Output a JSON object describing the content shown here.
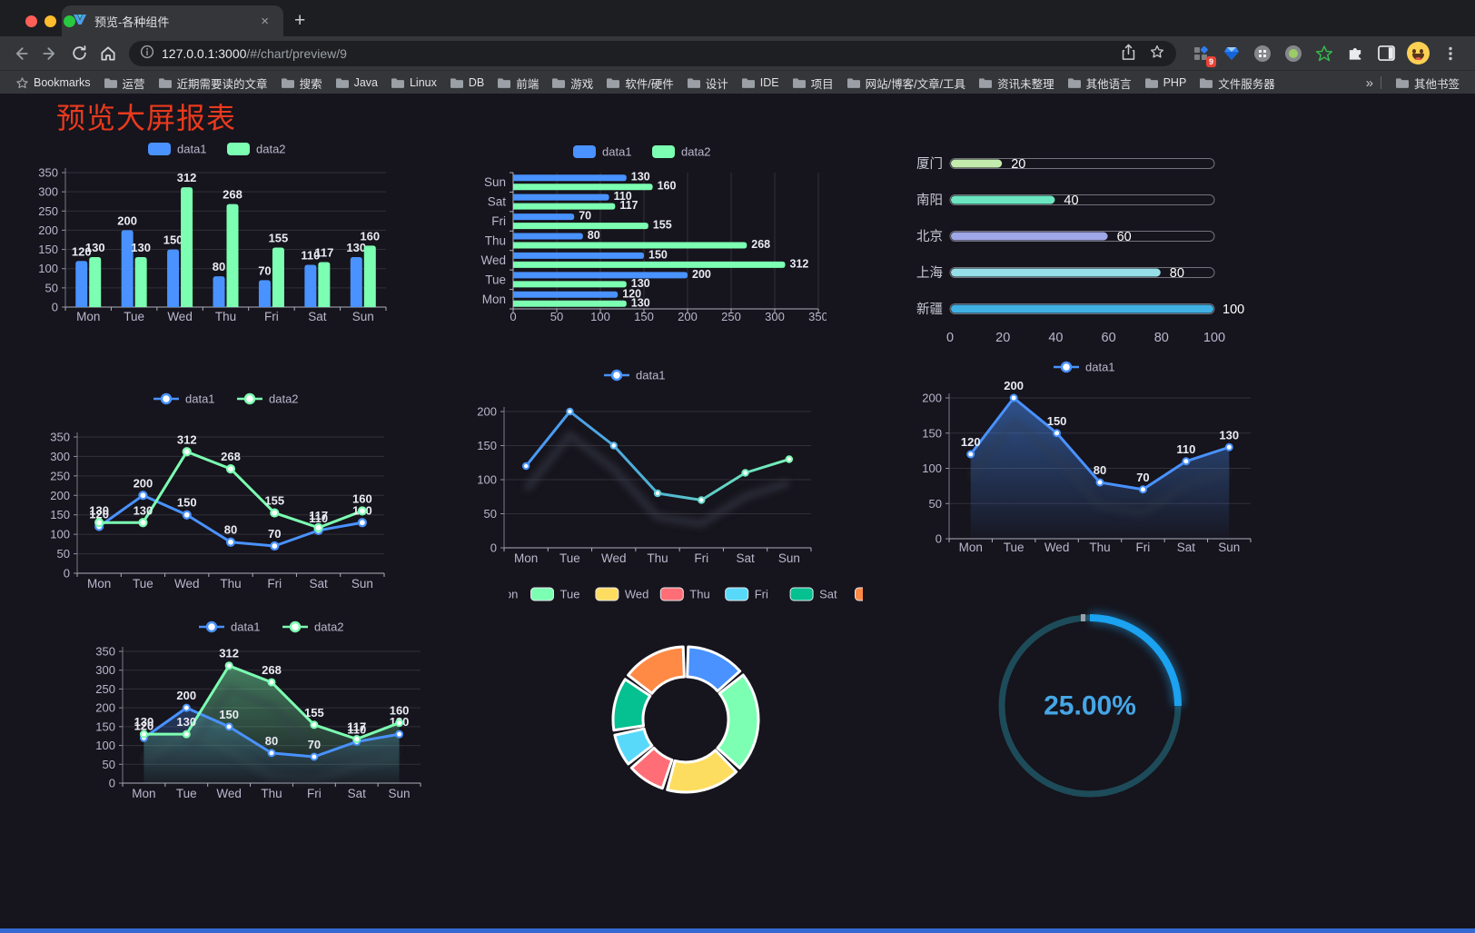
{
  "browser": {
    "traffic_lights": [
      "#ff5f57",
      "#febc2e",
      "#28c840"
    ],
    "tab": {
      "title": "预览-各种组件",
      "close": "×",
      "new_tab": "+"
    },
    "url": {
      "host": "127.0.0.1:3000",
      "path": "/#/chart/preview/9"
    },
    "bookmarks_bar": {
      "bookmarks_label": "Bookmarks",
      "folders": [
        "运营",
        "近期需要读的文章",
        "搜索",
        "Java",
        "Linux",
        "DB",
        "前端",
        "游戏",
        "软件/硬件",
        "设计",
        "IDE",
        "项目",
        "网站/博客/文章/工具",
        "资讯未整理",
        "其他语言",
        "PHP",
        "文件服务器"
      ],
      "overflow": "»",
      "other_bookmarks": "其他书签"
    },
    "extension_badge": "9"
  },
  "page": {
    "title": "预览大屏报表",
    "title_color": "#e83a1e",
    "background": "#16141c",
    "bottom_bar_color": "#3569d3"
  },
  "chart_data": [
    {
      "id": "c1",
      "type": "bar",
      "variant": "grouped-vertical",
      "categories": [
        "Mon",
        "Tue",
        "Wed",
        "Thu",
        "Fri",
        "Sat",
        "Sun"
      ],
      "series": [
        {
          "name": "data1",
          "color": "#4992ff",
          "values": [
            120,
            200,
            150,
            80,
            70,
            110,
            130
          ]
        },
        {
          "name": "data2",
          "color": "#7cffb2",
          "values": [
            130,
            130,
            312,
            268,
            155,
            117,
            160
          ]
        }
      ],
      "ylim": [
        0,
        350
      ],
      "ytick": 50,
      "legend_position": "top"
    },
    {
      "id": "c2",
      "type": "bar",
      "variant": "grouped-horizontal",
      "categories": [
        "Mon",
        "Tue",
        "Wed",
        "Thu",
        "Fri",
        "Sat",
        "Sun"
      ],
      "row_order_top_to_bottom": [
        "Sun",
        "Sat",
        "Fri",
        "Thu",
        "Wed",
        "Tue",
        "Mon"
      ],
      "series": [
        {
          "name": "data1",
          "color": "#4992ff",
          "values": [
            120,
            200,
            150,
            80,
            70,
            110,
            130
          ]
        },
        {
          "name": "data2",
          "color": "#7cffb2",
          "values": [
            130,
            130,
            312,
            268,
            155,
            117,
            160
          ]
        }
      ],
      "xlim": [
        0,
        350
      ],
      "xtick": 50,
      "legend_position": "top"
    },
    {
      "id": "c3",
      "type": "bar",
      "variant": "progress",
      "categories": [
        "厦门",
        "南阳",
        "北京",
        "上海",
        "新疆"
      ],
      "values": [
        20,
        40,
        60,
        80,
        100
      ],
      "colors": [
        "#c4ebad",
        "#6be6c1",
        "#a0a7e6",
        "#96dee8",
        "#3fb1e3"
      ],
      "xlim": [
        0,
        100
      ],
      "xticks": [
        0,
        20,
        40,
        60,
        80,
        100
      ]
    },
    {
      "id": "c4",
      "type": "line",
      "variant": "multi",
      "categories": [
        "Mon",
        "Tue",
        "Wed",
        "Thu",
        "Fri",
        "Sat",
        "Sun"
      ],
      "series": [
        {
          "name": "data1",
          "color": "#4992ff",
          "values": [
            120,
            200,
            150,
            80,
            70,
            110,
            130
          ]
        },
        {
          "name": "data2",
          "color": "#7cffb2",
          "values": [
            130,
            130,
            312,
            268,
            155,
            117,
            160
          ]
        }
      ],
      "ylim": [
        0,
        350
      ],
      "ytick": 50,
      "labels": true
    },
    {
      "id": "c5",
      "type": "line",
      "variant": "gradient-single",
      "categories": [
        "Mon",
        "Tue",
        "Wed",
        "Thu",
        "Fri",
        "Sat",
        "Sun"
      ],
      "series": [
        {
          "name": "data1",
          "color": "#4992ff",
          "values": [
            120,
            200,
            150,
            80,
            70,
            110,
            130
          ]
        }
      ],
      "gradient": [
        "#4992ff",
        "#4fb3d2",
        "#7cffb2"
      ],
      "ylim": [
        0,
        200
      ],
      "ytick": 50,
      "labels": false
    },
    {
      "id": "c6",
      "type": "area",
      "variant": "single",
      "categories": [
        "Mon",
        "Tue",
        "Wed",
        "Thu",
        "Fri",
        "Sat",
        "Sun"
      ],
      "series": [
        {
          "name": "data1",
          "color": "#4992ff",
          "values": [
            120,
            200,
            150,
            80,
            70,
            110,
            130
          ]
        }
      ],
      "ylim": [
        0,
        200
      ],
      "ytick": 50,
      "labels": true
    },
    {
      "id": "c7",
      "type": "area",
      "variant": "multi",
      "categories": [
        "Mon",
        "Tue",
        "Wed",
        "Thu",
        "Fri",
        "Sat",
        "Sun"
      ],
      "series": [
        {
          "name": "data1",
          "color": "#4992ff",
          "values": [
            120,
            200,
            150,
            80,
            70,
            110,
            130
          ]
        },
        {
          "name": "data2",
          "color": "#7cffb2",
          "values": [
            130,
            130,
            312,
            268,
            155,
            117,
            160
          ]
        }
      ],
      "ylim": [
        0,
        350
      ],
      "ytick": 50,
      "labels": true
    },
    {
      "id": "c8",
      "type": "pie",
      "variant": "doughnut",
      "categories": [
        "Mon",
        "Tue",
        "Wed",
        "Thu",
        "Fri",
        "Sat",
        "Sun"
      ],
      "values": [
        120,
        200,
        150,
        80,
        70,
        110,
        130
      ],
      "colors": [
        "#4992ff",
        "#7cffb2",
        "#fddd60",
        "#ff6e76",
        "#58d9f9",
        "#05c091",
        "#ff8a45"
      ]
    },
    {
      "id": "c9",
      "type": "gauge",
      "variant": "ring-progress",
      "value": 25,
      "value_label": "25.00%",
      "color": "#1ba2f0",
      "track_color": "#1d4b59",
      "value_color": "#45a6e6"
    }
  ]
}
